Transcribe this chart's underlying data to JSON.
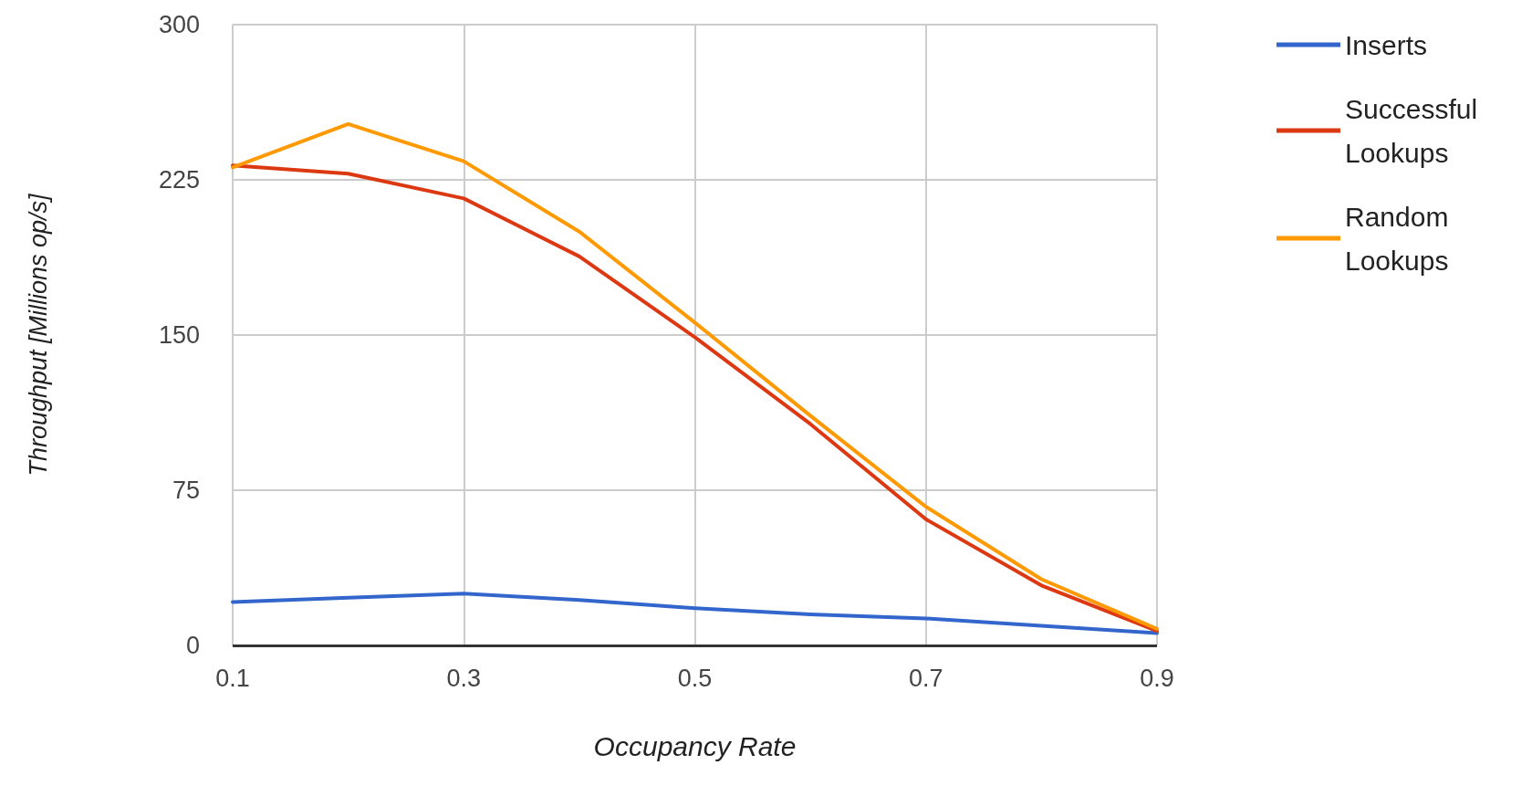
{
  "chart_data": {
    "type": "line",
    "xlabel": "Occupancy Rate",
    "ylabel": "Throughput [Millions op/s]",
    "x": [
      0.1,
      0.2,
      0.3,
      0.4,
      0.5,
      0.6,
      0.7,
      0.8,
      0.9
    ],
    "series": [
      {
        "name": "Inserts",
        "color": "#3366cc",
        "values": [
          21,
          23,
          25,
          22,
          18,
          15,
          13,
          9.5,
          6
        ]
      },
      {
        "name": "Successful Lookups",
        "color": "#dc3912",
        "values": [
          232,
          228,
          216,
          188,
          149,
          107,
          61,
          29,
          7
        ]
      },
      {
        "name": "Random Lookups",
        "color": "#ff9900",
        "values": [
          231,
          252,
          234,
          200,
          156,
          111,
          67,
          32,
          8
        ]
      }
    ],
    "xlim": [
      0.1,
      0.9
    ],
    "xticks": [
      0.1,
      0.3,
      0.5,
      0.7,
      0.9
    ],
    "ylim": [
      0,
      300
    ],
    "yticks": [
      0,
      75,
      150,
      225,
      300
    ],
    "grid": true,
    "legend": "top right",
    "marker": "none",
    "line_style": "solid"
  }
}
